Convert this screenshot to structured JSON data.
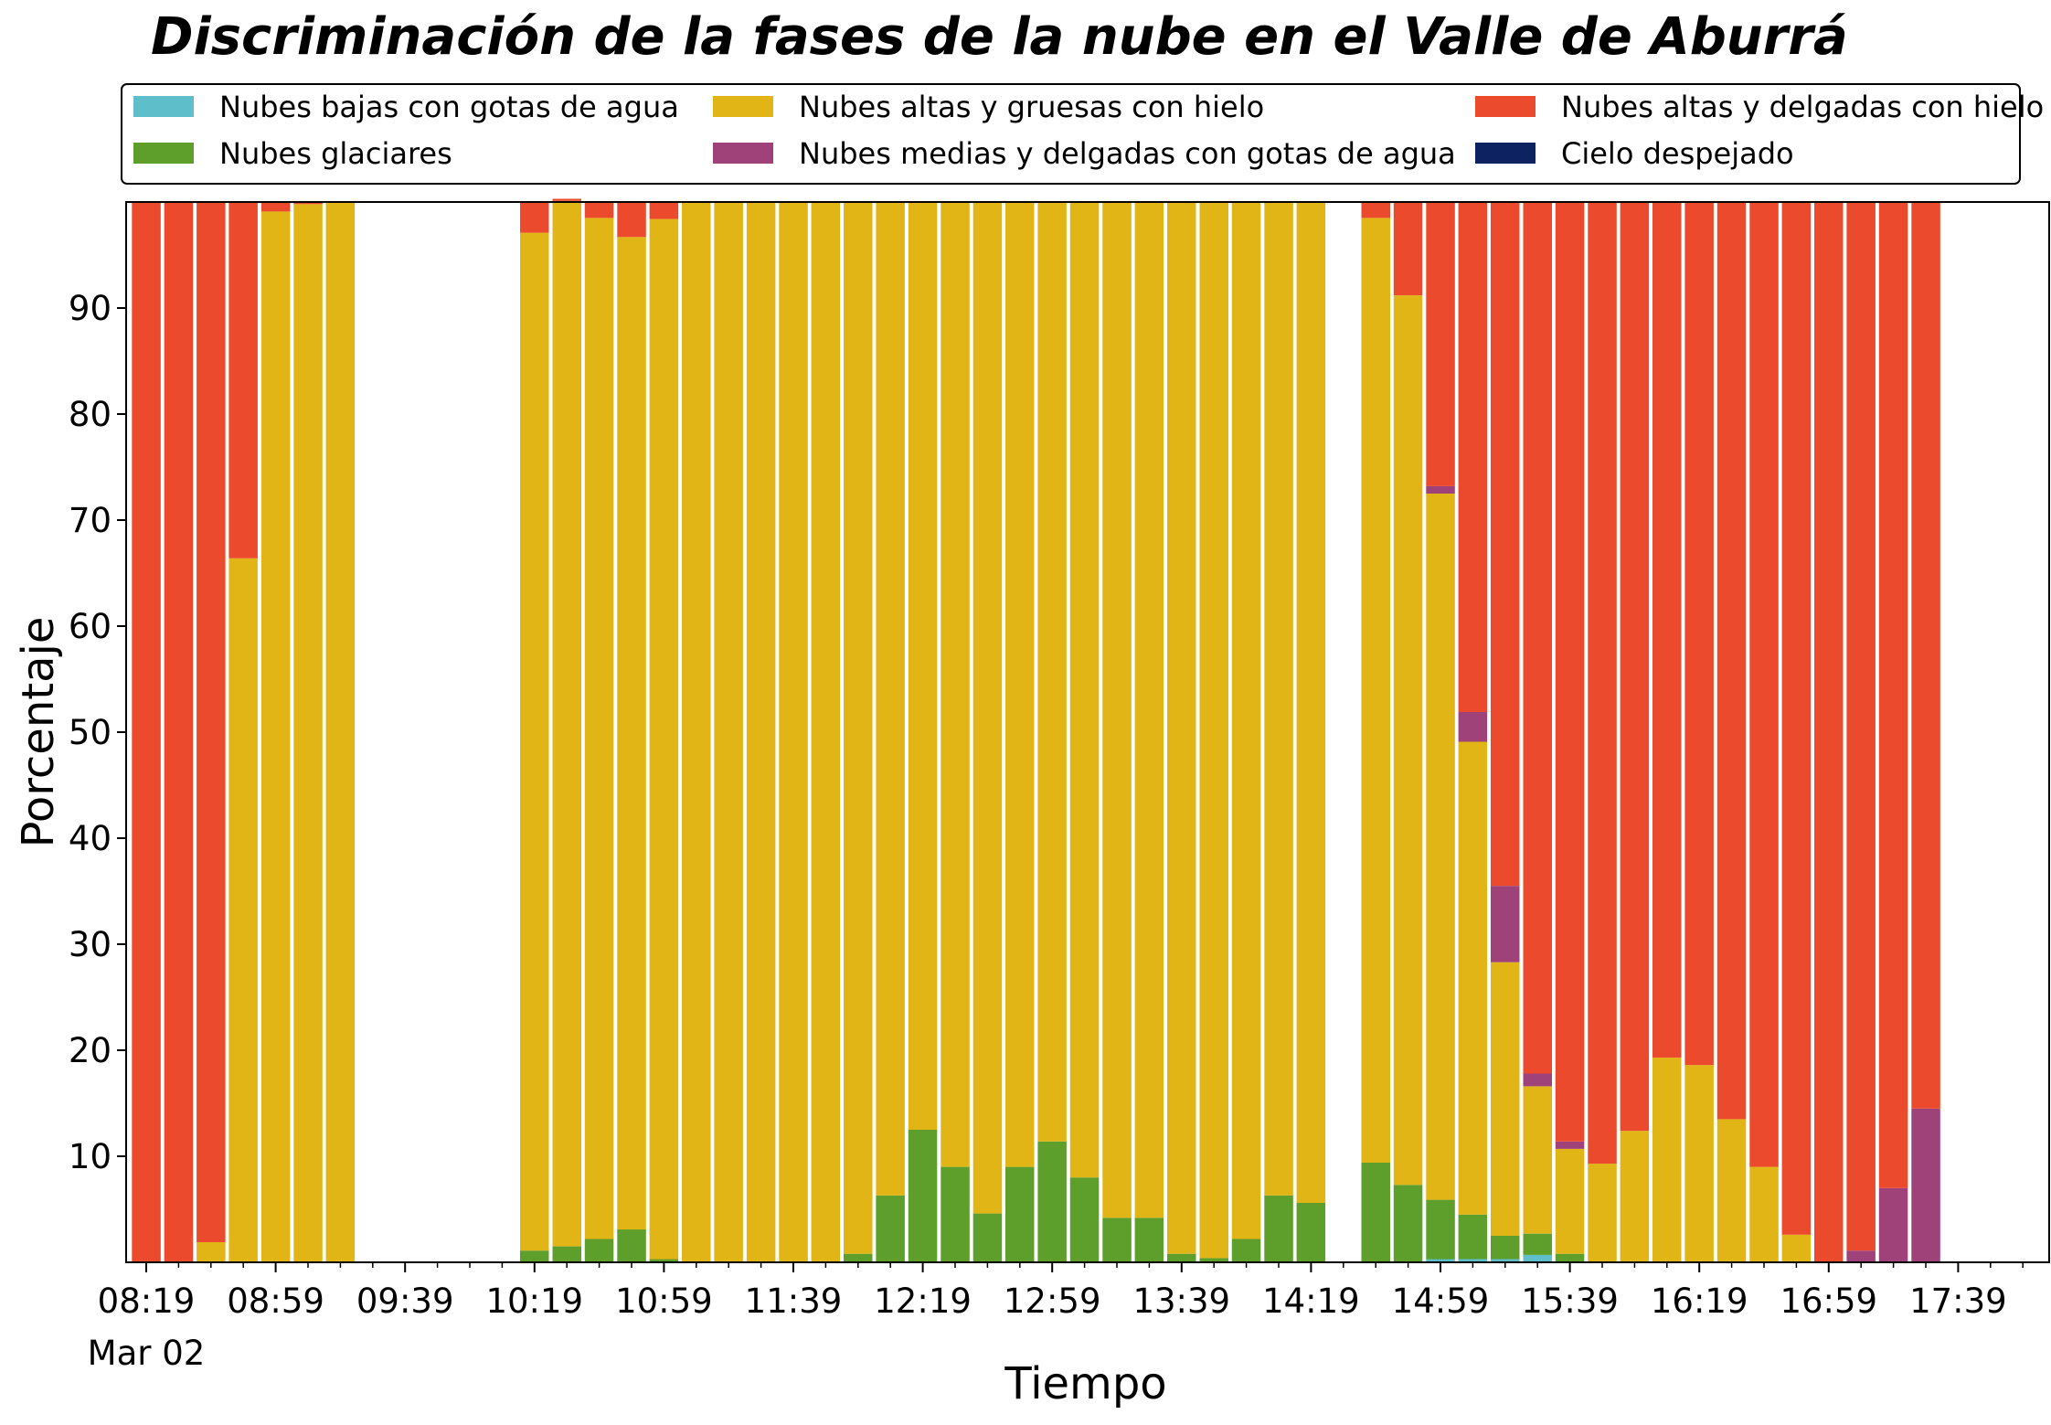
{
  "chart_data": {
    "type": "bar",
    "stacked": true,
    "title": "Discriminación de la fases de la nube en el Valle de Aburrá",
    "xlabel": "Tiempo",
    "ylabel": "Porcentaje",
    "ylim": [
      0,
      100
    ],
    "yticks": [
      10,
      20,
      30,
      40,
      50,
      60,
      70,
      80,
      90
    ],
    "xtick_labels": [
      "08:19",
      "08:59",
      "09:39",
      "10:19",
      "10:59",
      "11:39",
      "12:19",
      "12:59",
      "13:39",
      "14:19",
      "14:59",
      "15:39",
      "16:19",
      "16:59",
      "17:39"
    ],
    "xtick_date": "Mar 02",
    "time_start": "08:19",
    "time_step_minutes": 10,
    "legend_placement": "top",
    "legend_columns": 3,
    "grid": false,
    "categories": [
      "08:19",
      "08:29",
      "08:39",
      "08:49",
      "08:59",
      "09:09",
      "09:19",
      "09:29",
      "09:39",
      "09:49",
      "09:59",
      "10:09",
      "10:19",
      "10:29",
      "10:39",
      "10:49",
      "10:59",
      "11:09",
      "11:19",
      "11:29",
      "11:39",
      "11:49",
      "11:59",
      "12:09",
      "12:19",
      "12:29",
      "12:39",
      "12:49",
      "12:59",
      "13:09",
      "13:19",
      "13:29",
      "13:39",
      "13:49",
      "13:59",
      "14:09",
      "14:19",
      "14:29",
      "14:39",
      "14:49",
      "14:59",
      "15:09",
      "15:19",
      "15:29",
      "15:39",
      "15:49",
      "15:59",
      "16:09",
      "16:19",
      "16:29",
      "16:39",
      "16:49",
      "16:59",
      "17:09",
      "17:19",
      "17:29",
      "17:39"
    ],
    "series": [
      {
        "name": "Nubes bajas con gotas de agua",
        "color": "#5ebec9",
        "values": [
          0,
          0,
          0,
          0,
          0,
          0,
          0,
          0,
          0,
          0,
          0,
          0,
          0,
          0,
          0,
          0,
          0,
          0,
          0,
          0,
          0,
          0,
          0,
          0,
          0,
          0,
          0,
          0,
          0,
          0,
          0,
          0,
          0,
          0,
          0,
          0,
          0,
          0,
          0,
          0,
          0.3,
          0.3,
          0.3,
          0.7,
          0,
          0,
          0,
          0,
          0,
          0,
          0,
          0,
          0,
          0,
          0,
          0,
          0
        ]
      },
      {
        "name": "Nubes glaciares",
        "color": "#5e9e2b",
        "values": [
          0,
          0,
          0,
          0,
          0,
          0,
          0,
          0,
          0,
          0,
          0,
          0,
          1.1,
          1.5,
          2.2,
          3.1,
          0.3,
          0,
          0,
          0,
          0,
          0,
          0.8,
          6.3,
          12.5,
          9.0,
          4.6,
          9.0,
          11.4,
          8.0,
          4.2,
          4.2,
          0.8,
          0.4,
          2.2,
          6.3,
          5.6,
          0,
          9.4,
          7.3,
          5.6,
          4.2,
          2.2,
          2.0,
          0.8,
          0,
          0,
          0,
          0,
          0,
          0,
          0,
          0,
          0,
          0,
          0,
          0
        ]
      },
      {
        "name": "Nubes altas y gruesas con hielo",
        "color": "#e0b515",
        "values": [
          0,
          0,
          1.9,
          66.4,
          99.1,
          99.8,
          100,
          0,
          0,
          0,
          0,
          0,
          96.0,
          98.6,
          96.3,
          93.6,
          98.1,
          100,
          100,
          100,
          100,
          100,
          99.2,
          93.7,
          87.5,
          91.0,
          95.4,
          91.0,
          88.6,
          92.0,
          95.8,
          95.8,
          99.2,
          99.6,
          97.8,
          93.7,
          94.4,
          0,
          89.1,
          83.9,
          66.6,
          44.6,
          25.8,
          13.9,
          9.9,
          9.3,
          12.4,
          19.3,
          18.6,
          13.5,
          9.0,
          2.6,
          0,
          0,
          0,
          0,
          0
        ]
      },
      {
        "name": "Nubes medias y delgadas con gotas de agua",
        "color": "#a0427a",
        "values": [
          0,
          0,
          0,
          0,
          0,
          0,
          0,
          0,
          0,
          0,
          0,
          0,
          0,
          0,
          0,
          0,
          0,
          0,
          0,
          0,
          0,
          0,
          0,
          0,
          0,
          0,
          0,
          0,
          0,
          0,
          0,
          0,
          0,
          0,
          0,
          0,
          0,
          0,
          0,
          0,
          0.7,
          2.8,
          7.2,
          1.2,
          0.7,
          0,
          0,
          0,
          0,
          0,
          0,
          0,
          0,
          1.1,
          7.0,
          14.5,
          0
        ]
      },
      {
        "name": "Nubes altas y delgadas con hielo",
        "color": "#ec4a2c",
        "values": [
          100,
          100,
          98.1,
          33.6,
          0.9,
          0.2,
          0,
          0,
          0,
          0,
          0,
          0,
          2.9,
          0.2,
          1.5,
          3.3,
          1.6,
          0,
          0,
          0,
          0,
          0,
          0,
          0,
          0,
          0,
          0,
          0,
          0,
          0,
          0,
          0,
          0,
          0,
          0,
          0,
          0,
          0,
          1.5,
          8.8,
          26.8,
          48.1,
          64.5,
          82.2,
          88.6,
          90.7,
          87.6,
          80.7,
          81.4,
          86.5,
          91.0,
          97.4,
          100,
          98.9,
          93.0,
          85.5,
          0
        ]
      },
      {
        "name": "Cielo despejado",
        "color": "#0d2261",
        "values": [
          0,
          0,
          0,
          0,
          0,
          0,
          0,
          0,
          0,
          0,
          0,
          0,
          0,
          0,
          0,
          0,
          0,
          0,
          0,
          0,
          0,
          0,
          0,
          0,
          0,
          0,
          0,
          0,
          0,
          0,
          0,
          0,
          0,
          0,
          0,
          0,
          0,
          0,
          0,
          0,
          0,
          0,
          0,
          0,
          0,
          0,
          0,
          0,
          0,
          0,
          0,
          0,
          0,
          0,
          0,
          0,
          0
        ]
      }
    ]
  }
}
